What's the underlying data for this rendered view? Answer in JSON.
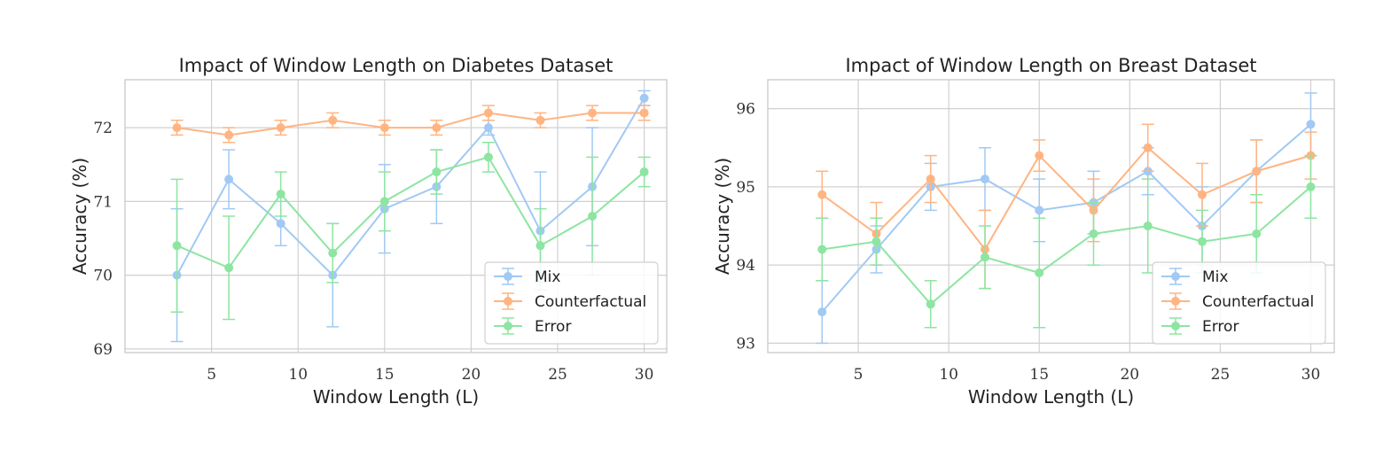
{
  "chart_data": [
    {
      "type": "line",
      "title": "Impact of Window Length on Diabetes Dataset",
      "xlabel": "Window Length (L)",
      "ylabel": "Accuracy (%)",
      "x": [
        3,
        6,
        9,
        12,
        15,
        18,
        21,
        24,
        27,
        30
      ],
      "xlim": [
        0,
        31.3
      ],
      "ylim": [
        68.95,
        72.65
      ],
      "xticks": [
        5,
        10,
        15,
        20,
        25,
        30
      ],
      "yticks": [
        69,
        70,
        71,
        72
      ],
      "grid": true,
      "legend_position": "lower-right",
      "series": [
        {
          "name": "Mix",
          "color": "#a1c9f4",
          "values": [
            70.0,
            71.3,
            70.7,
            70.0,
            70.9,
            71.2,
            72.0,
            70.6,
            71.2,
            72.4
          ],
          "errors": [
            0.9,
            0.4,
            0.3,
            0.7,
            0.6,
            0.5,
            0.1,
            0.8,
            0.8,
            0.1
          ]
        },
        {
          "name": "Counterfactual",
          "color": "#ffb482",
          "values": [
            72.0,
            71.9,
            72.0,
            72.1,
            72.0,
            72.0,
            72.2,
            72.1,
            72.2,
            72.2
          ],
          "errors": [
            0.1,
            0.1,
            0.1,
            0.1,
            0.1,
            0.1,
            0.1,
            0.1,
            0.1,
            0.1
          ]
        },
        {
          "name": "Error",
          "color": "#8de5a1",
          "values": [
            70.4,
            70.1,
            71.1,
            70.3,
            71.0,
            71.4,
            71.6,
            70.4,
            70.8,
            71.4
          ],
          "errors": [
            0.9,
            0.7,
            0.3,
            0.4,
            0.4,
            0.3,
            0.2,
            0.5,
            0.8,
            0.2
          ]
        }
      ]
    },
    {
      "type": "line",
      "title": "Impact of Window Length on Breast Dataset",
      "xlabel": "Window Length (L)",
      "ylabel": "Accuracy (%)",
      "x": [
        3,
        6,
        9,
        12,
        15,
        18,
        21,
        24,
        27,
        30
      ],
      "xlim": [
        0,
        31.3
      ],
      "ylim": [
        92.88,
        96.37
      ],
      "xticks": [
        5,
        10,
        15,
        20,
        25,
        30
      ],
      "yticks": [
        93,
        94,
        95,
        96
      ],
      "grid": true,
      "legend_position": "lower-right",
      "series": [
        {
          "name": "Mix",
          "color": "#a1c9f4",
          "values": [
            93.4,
            94.2,
            95.0,
            95.1,
            94.7,
            94.8,
            95.2,
            94.5,
            95.2,
            95.8
          ],
          "errors": [
            0.4,
            0.3,
            0.3,
            0.4,
            0.4,
            0.4,
            0.3,
            0.5,
            0.4,
            0.4
          ]
        },
        {
          "name": "Counterfactual",
          "color": "#ffb482",
          "values": [
            94.9,
            94.4,
            95.1,
            94.2,
            95.4,
            94.7,
            95.5,
            94.9,
            95.2,
            95.4
          ],
          "errors": [
            0.3,
            0.4,
            0.3,
            0.5,
            0.2,
            0.4,
            0.3,
            0.4,
            0.4,
            0.3
          ]
        },
        {
          "name": "Error",
          "color": "#8de5a1",
          "values": [
            94.2,
            94.3,
            93.5,
            94.1,
            93.9,
            94.4,
            94.5,
            94.3,
            94.4,
            95.0
          ],
          "errors": [
            0.4,
            0.3,
            0.3,
            0.4,
            0.7,
            0.4,
            0.6,
            0.4,
            0.5,
            0.4
          ]
        }
      ]
    }
  ]
}
